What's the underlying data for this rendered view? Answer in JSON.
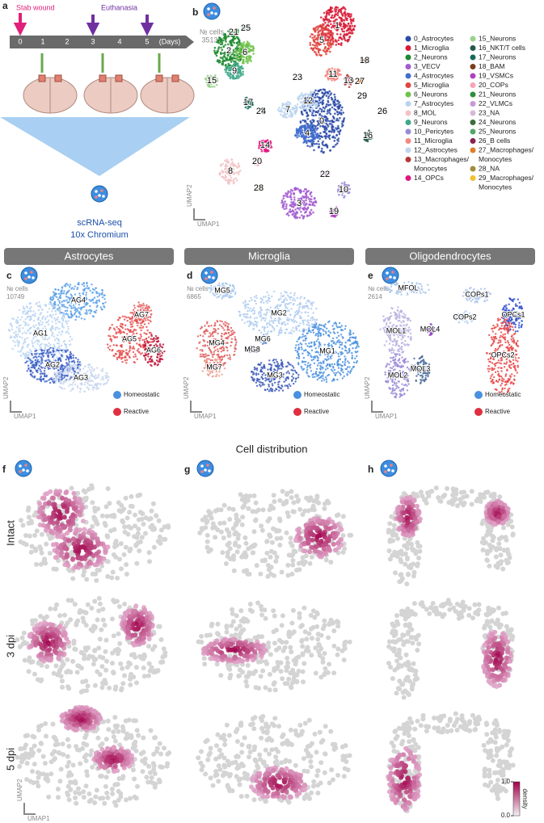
{
  "panel_a": {
    "letter": "a",
    "stab_wound": "Stab wound",
    "euthanasia": "Euthanasia",
    "days": [
      "0",
      "1",
      "2",
      "3",
      "4",
      "5"
    ],
    "days_unit": "(Days)",
    "method": [
      "scRNA-seq",
      "10x Chromium"
    ]
  },
  "panel_b": {
    "letter": "b",
    "cells_label": "№ cells",
    "cells": 35132,
    "cluster_labels": [
      "0",
      "1",
      "2",
      "3",
      "4",
      "5",
      "6",
      "7",
      "8",
      "9",
      "10",
      "11",
      "12",
      "13",
      "14",
      "15",
      "16",
      "17",
      "18",
      "19",
      "20",
      "21",
      "22",
      "23",
      "24",
      "25",
      "26",
      "27",
      "28",
      "29"
    ],
    "legend": [
      {
        "label": [
          "0_Astrocytes"
        ],
        "color": "#2a4aa8"
      },
      {
        "label": [
          "1_Microglia"
        ],
        "color": "#d81b36"
      },
      {
        "label": [
          "2_Neurons"
        ],
        "color": "#1c8a2e"
      },
      {
        "label": [
          "3_VECV"
        ],
        "color": "#a25bd0"
      },
      {
        "label": [
          "4_Astrocytes"
        ],
        "color": "#3f6fd0"
      },
      {
        "label": [
          "5_Microglia"
        ],
        "color": "#e0453f"
      },
      {
        "label": [
          "6_Neurons"
        ],
        "color": "#6ec24a"
      },
      {
        "label": [
          "7_Astrocytes"
        ],
        "color": "#b8d3ef"
      },
      {
        "label": [
          "8_MOL"
        ],
        "color": "#f2c3c6"
      },
      {
        "label": [
          "9_Neurons"
        ],
        "color": "#3fa78a"
      },
      {
        "label": [
          "10_Pericytes"
        ],
        "color": "#9a8ad8"
      },
      {
        "label": [
          "11_Microglia"
        ],
        "color": "#f28a82"
      },
      {
        "label": [
          "12_Astrocytes"
        ],
        "color": "#bed6ee"
      },
      {
        "label": [
          "13_Macrophages/",
          "Monocytes"
        ],
        "color": "#b53a3a"
      },
      {
        "label": [
          "14_OPCs"
        ],
        "color": "#e0157f"
      },
      {
        "label": [
          "15_Neurons"
        ],
        "color": "#99d28b"
      },
      {
        "label": [
          "16_NKT/T cells"
        ],
        "color": "#24594a"
      },
      {
        "label": [
          "17_Neurons"
        ],
        "color": "#186b5a"
      },
      {
        "label": [
          "18_BAM"
        ],
        "color": "#7a3e1a"
      },
      {
        "label": [
          "19_VSMCs"
        ],
        "color": "#b040c0"
      },
      {
        "label": [
          "20_COPs"
        ],
        "color": "#f5a5b5"
      },
      {
        "label": [
          "21_Neurons"
        ],
        "color": "#2d8f3c"
      },
      {
        "label": [
          "22_VLMCs"
        ],
        "color": "#c999d6"
      },
      {
        "label": [
          "23_NA"
        ],
        "color": "#d8b8d8"
      },
      {
        "label": [
          "24_Neurons"
        ],
        "color": "#3d6b3d"
      },
      {
        "label": [
          "25_Neurons"
        ],
        "color": "#52a86b"
      },
      {
        "label": [
          "26_B cells"
        ],
        "color": "#8a2251"
      },
      {
        "label": [
          "27_Macrophages/",
          "Monocytes"
        ],
        "color": "#e07d2a"
      },
      {
        "label": [
          "28_NA"
        ],
        "color": "#a08c3a"
      },
      {
        "label": [
          "29_Macrophages/",
          "Monocytes"
        ],
        "color": "#f0c030"
      }
    ],
    "x_axis": "UMAP1",
    "y_axis": "UMAP2"
  },
  "subclusters": [
    {
      "header": "Astrocytes",
      "letter": "c",
      "cells_label": "№ cells",
      "cells": 10749,
      "labels": [
        "AG4",
        "AG7",
        "AG1",
        "AG5",
        "AG6",
        "AG2",
        "AG3"
      ],
      "legend": [
        "Homeostatic",
        "Reactive"
      ],
      "x_axis": "UMAP1",
      "y_axis": "UMAP2"
    },
    {
      "header": "Microglia",
      "letter": "d",
      "cells_label": "№ cells",
      "cells": 6865,
      "labels": [
        "MG5",
        "MG2",
        "MG4",
        "MG6",
        "MG8",
        "MG1",
        "MG3",
        "MG7"
      ],
      "legend": [
        "Homeostatic",
        "Reactive"
      ],
      "x_axis": "UMAP1",
      "y_axis": "UMAP2"
    },
    {
      "header": "Oligodendrocytes",
      "letter": "e",
      "cells_label": "№ cells",
      "cells": 2614,
      "labels": [
        "MFOL",
        "COPs1",
        "COPs2",
        "OPCs1",
        "MOL1",
        "MOL4",
        "OPCs2",
        "MOL2",
        "MOL3"
      ],
      "legend": [
        "Homeostatic",
        "Reactive"
      ],
      "x_axis": "UMAP1",
      "y_axis": "UMAP2"
    }
  ],
  "distribution": {
    "title": "Cell distribution",
    "letters": [
      "f",
      "g",
      "h"
    ],
    "rows": [
      "Intact",
      "3 dpi",
      "5 dpi"
    ],
    "colorbar": {
      "label": "density",
      "ticks": [
        {
          "value": 1,
          "label": "1.0"
        },
        {
          "value": 0,
          "label": "0.0"
        }
      ]
    },
    "x_axis": "UMAP1",
    "y_axis": "UMAP2"
  }
}
